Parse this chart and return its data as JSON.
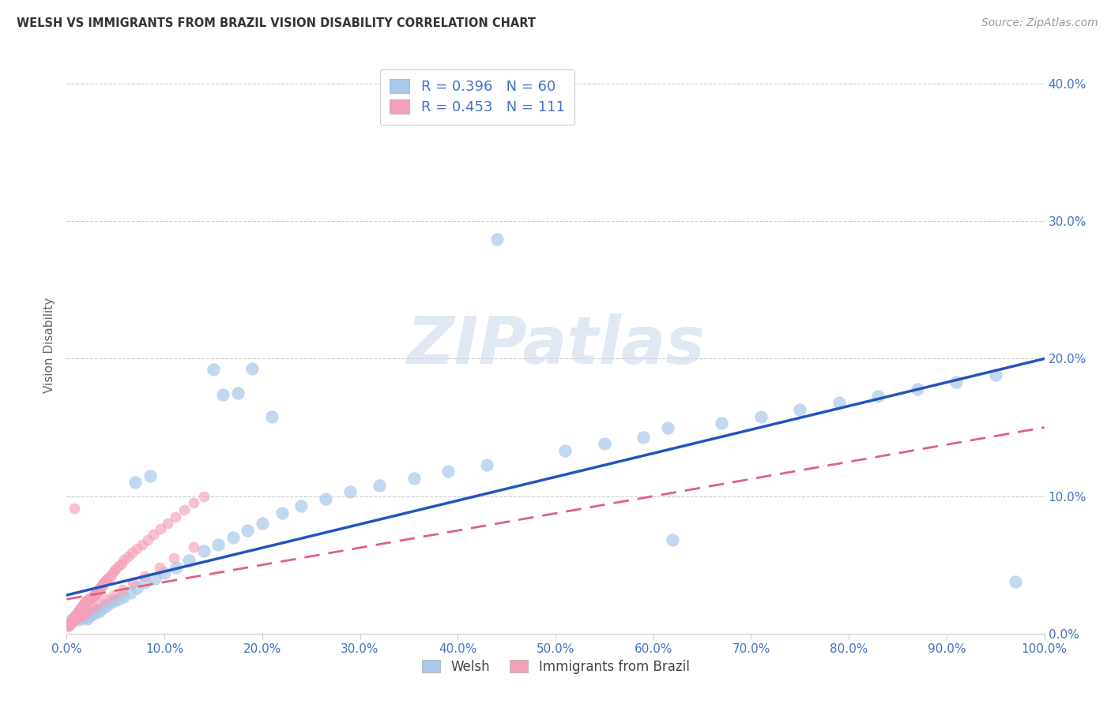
{
  "title": "WELSH VS IMMIGRANTS FROM BRAZIL VISION DISABILITY CORRELATION CHART",
  "source": "Source: ZipAtlas.com",
  "ylabel": "Vision Disability",
  "welsh_R": 0.396,
  "welsh_N": 60,
  "brazil_R": 0.453,
  "brazil_N": 111,
  "welsh_color": "#aac8e8",
  "brazil_color": "#f4a0b8",
  "welsh_line_color": "#2255bb",
  "brazil_line_color": "#e06080",
  "xlim": [
    0.0,
    1.0
  ],
  "ylim": [
    0.0,
    0.42
  ],
  "xtick_vals": [
    0.0,
    0.1,
    0.2,
    0.3,
    0.4,
    0.5,
    0.6,
    0.7,
    0.8,
    0.9,
    1.0
  ],
  "ytick_vals": [
    0.0,
    0.1,
    0.2,
    0.3,
    0.4
  ],
  "watermark_text": "ZIPatlas",
  "background": "#ffffff",
  "title_color": "#333333",
  "source_color": "#999999",
  "tick_label_color": "#4472c4",
  "grid_color": "#cccccc",
  "ylabel_color": "#666666",
  "welsh_x": [
    0.005,
    0.007,
    0.009,
    0.011,
    0.013,
    0.015,
    0.017,
    0.019,
    0.021,
    0.023,
    0.025,
    0.027,
    0.03,
    0.033,
    0.036,
    0.04,
    0.044,
    0.048,
    0.053,
    0.058,
    0.065,
    0.072,
    0.08,
    0.09,
    0.1,
    0.112,
    0.125,
    0.14,
    0.155,
    0.17,
    0.185,
    0.2,
    0.22,
    0.24,
    0.265,
    0.29,
    0.32,
    0.355,
    0.39,
    0.43,
    0.47,
    0.51,
    0.55,
    0.59,
    0.63,
    0.67,
    0.71,
    0.75,
    0.79,
    0.83,
    0.87,
    0.91,
    0.95,
    0.98,
    0.615,
    0.15,
    0.175,
    0.21,
    0.07,
    0.085
  ],
  "welsh_y": [
    0.01,
    0.01,
    0.011,
    0.012,
    0.01,
    0.013,
    0.014,
    0.012,
    0.011,
    0.013,
    0.015,
    0.014,
    0.017,
    0.016,
    0.018,
    0.02,
    0.022,
    0.024,
    0.025,
    0.027,
    0.03,
    0.033,
    0.037,
    0.04,
    0.044,
    0.048,
    0.053,
    0.06,
    0.065,
    0.07,
    0.075,
    0.08,
    0.088,
    0.093,
    0.098,
    0.103,
    0.108,
    0.113,
    0.118,
    0.123,
    0.128,
    0.133,
    0.138,
    0.143,
    0.148,
    0.153,
    0.158,
    0.163,
    0.168,
    0.173,
    0.178,
    0.183,
    0.188,
    0.193,
    0.15,
    0.192,
    0.175,
    0.158,
    0.11,
    0.115
  ],
  "brazil_x": [
    0.001,
    0.001,
    0.002,
    0.002,
    0.002,
    0.003,
    0.003,
    0.003,
    0.004,
    0.004,
    0.004,
    0.005,
    0.005,
    0.005,
    0.006,
    0.006,
    0.006,
    0.007,
    0.007,
    0.007,
    0.008,
    0.008,
    0.008,
    0.009,
    0.009,
    0.009,
    0.01,
    0.01,
    0.011,
    0.011,
    0.012,
    0.012,
    0.013,
    0.013,
    0.014,
    0.014,
    0.015,
    0.015,
    0.016,
    0.016,
    0.017,
    0.017,
    0.018,
    0.018,
    0.019,
    0.019,
    0.02,
    0.02,
    0.021,
    0.022,
    0.023,
    0.024,
    0.025,
    0.026,
    0.027,
    0.028,
    0.029,
    0.03,
    0.031,
    0.032,
    0.033,
    0.034,
    0.035,
    0.036,
    0.037,
    0.038,
    0.039,
    0.04,
    0.042,
    0.044,
    0.046,
    0.048,
    0.05,
    0.053,
    0.056,
    0.059,
    0.063,
    0.067,
    0.072,
    0.077,
    0.083,
    0.089,
    0.096,
    0.103,
    0.111,
    0.12,
    0.13,
    0.14,
    0.001,
    0.002,
    0.003,
    0.004,
    0.005,
    0.006,
    0.007,
    0.008,
    0.01,
    0.012,
    0.015,
    0.018,
    0.022,
    0.027,
    0.033,
    0.04,
    0.048,
    0.057,
    0.068,
    0.08,
    0.095,
    0.11,
    0.13
  ],
  "brazil_y": [
    0.005,
    0.006,
    0.006,
    0.007,
    0.006,
    0.007,
    0.007,
    0.008,
    0.007,
    0.008,
    0.008,
    0.008,
    0.009,
    0.009,
    0.009,
    0.01,
    0.01,
    0.01,
    0.011,
    0.011,
    0.011,
    0.012,
    0.012,
    0.012,
    0.013,
    0.013,
    0.013,
    0.014,
    0.014,
    0.015,
    0.015,
    0.016,
    0.016,
    0.017,
    0.017,
    0.018,
    0.018,
    0.019,
    0.019,
    0.02,
    0.02,
    0.021,
    0.021,
    0.022,
    0.022,
    0.023,
    0.023,
    0.024,
    0.024,
    0.025,
    0.025,
    0.026,
    0.026,
    0.027,
    0.027,
    0.028,
    0.028,
    0.029,
    0.03,
    0.031,
    0.032,
    0.033,
    0.034,
    0.035,
    0.036,
    0.037,
    0.038,
    0.039,
    0.04,
    0.041,
    0.043,
    0.045,
    0.047,
    0.049,
    0.051,
    0.054,
    0.056,
    0.059,
    0.062,
    0.065,
    0.068,
    0.072,
    0.076,
    0.08,
    0.085,
    0.09,
    0.095,
    0.1,
    0.006,
    0.007,
    0.007,
    0.008,
    0.009,
    0.009,
    0.01,
    0.01,
    0.011,
    0.012,
    0.013,
    0.015,
    0.017,
    0.019,
    0.022,
    0.025,
    0.028,
    0.032,
    0.037,
    0.042,
    0.048,
    0.055,
    0.063
  ]
}
